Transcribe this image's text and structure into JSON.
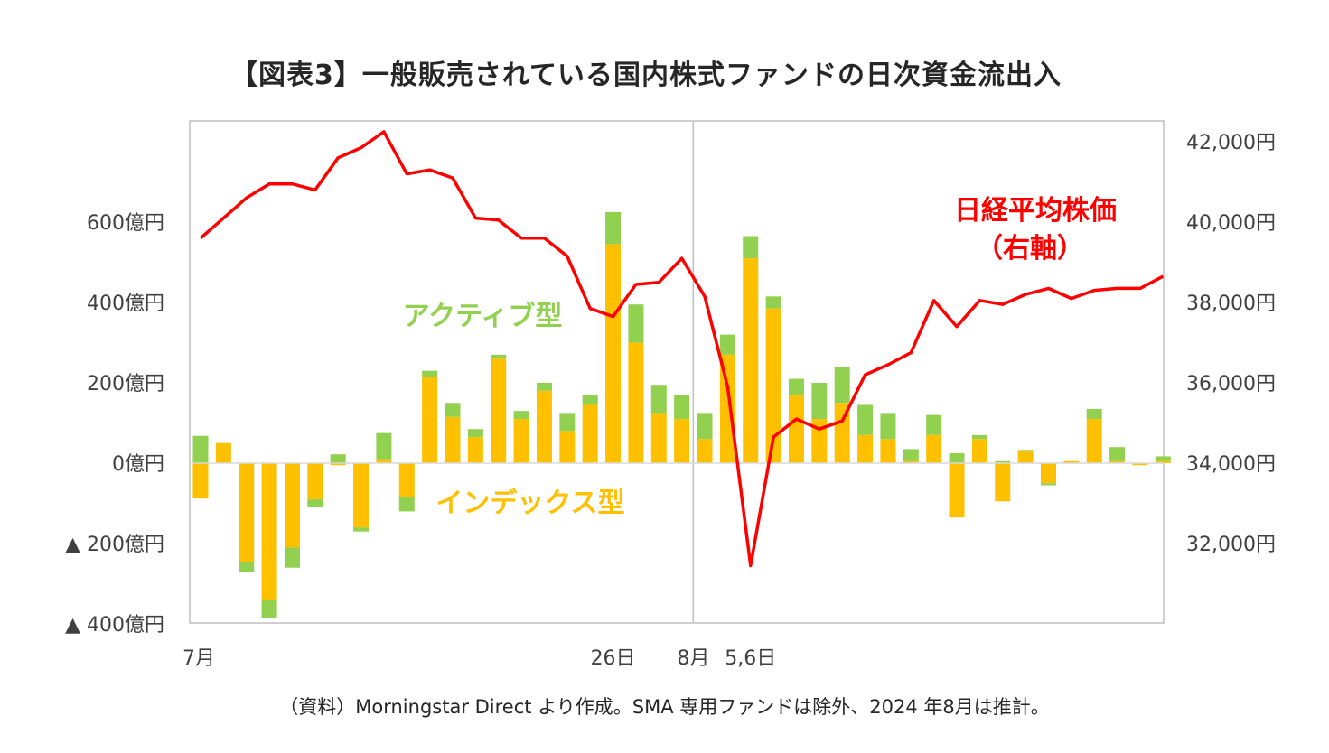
{
  "chart_data": {
    "type": "bar",
    "title": "【図表3】一般販売されている国内株式ファンドの日次資金流出入",
    "source_note": "（資料）Morningstar Direct より作成。SMA 専用ファンドは除外、2024 年8月は推計。",
    "series": [
      {
        "name": "インデックス型",
        "color": "#FFC000",
        "values": [
          -88,
          50,
          -245,
          -340,
          -210,
          -90,
          -5,
          -160,
          10,
          -85,
          215,
          115,
          65,
          260,
          110,
          180,
          80,
          145,
          545,
          300,
          125,
          110,
          60,
          270,
          510,
          385,
          170,
          110,
          150,
          70,
          60,
          5,
          70,
          -135,
          60,
          -95,
          30,
          -50,
          5,
          110,
          5,
          -5,
          5
        ]
      },
      {
        "name": "アクティブ型",
        "color": "#92D050",
        "values": [
          68,
          0,
          -25,
          -45,
          -50,
          -20,
          22,
          -10,
          65,
          -35,
          15,
          35,
          20,
          10,
          20,
          20,
          45,
          25,
          80,
          95,
          70,
          60,
          65,
          50,
          55,
          30,
          40,
          90,
          90,
          75,
          65,
          30,
          50,
          25,
          10,
          5,
          3,
          -5,
          0,
          25,
          35,
          0,
          12
        ]
      },
      {
        "name": "日経平均株価",
        "label_line2": "（右軸）",
        "color": "#FF0000",
        "axis": "right",
        "values": [
          39600,
          40100,
          40600,
          40950,
          40950,
          40800,
          41600,
          41850,
          42250,
          41200,
          41300,
          41100,
          40100,
          40050,
          39600,
          39600,
          39150,
          37850,
          37650,
          38450,
          38500,
          39100,
          38150,
          35900,
          31450,
          34650,
          35100,
          34850,
          35050,
          36200,
          36450,
          36750,
          38050,
          37400,
          38050,
          37950,
          38200,
          38350,
          38100,
          38300,
          38350,
          38350,
          38650
        ]
      }
    ],
    "left_axis": {
      "ylim": [
        -400,
        800
      ],
      "ticks": [
        -400,
        -200,
        0,
        200,
        400,
        600
      ],
      "tick_labels": [
        "▲ 400億円",
        "▲ 200億円",
        "0億円",
        "200億円",
        "400億円",
        "600億円"
      ]
    },
    "right_axis": {
      "ylim": [
        30000,
        42500
      ],
      "ticks": [
        32000,
        34000,
        36000,
        38000,
        40000,
        42000
      ],
      "tick_labels": [
        "32,000円",
        "34,000円",
        "36,000円",
        "38,000円",
        "40,000円",
        "42,000円"
      ]
    },
    "x_labels": [
      {
        "text": "7月",
        "index": 0
      },
      {
        "text": "26日",
        "index": 18
      },
      {
        "text": "8月",
        "index": 21.5
      },
      {
        "text": "5,6日",
        "index": 24
      }
    ],
    "month_divider_index": 21.5,
    "grid": false,
    "legend": "inline-labels"
  }
}
